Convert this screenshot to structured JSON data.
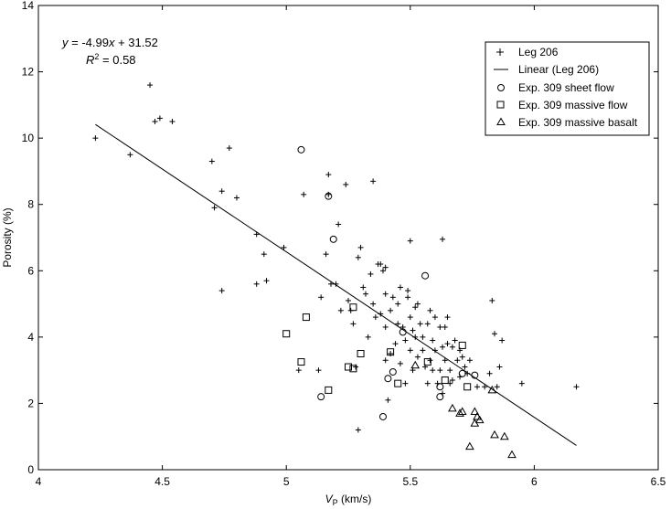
{
  "chart_data": {
    "type": "scatter",
    "title": "",
    "xlabel": "V",
    "xlabel_sub": "P",
    "xlabel_unit": " (km/s)",
    "ylabel": "Porosity (%)",
    "xlim": [
      4,
      6.5
    ],
    "ylim": [
      0,
      14
    ],
    "x_ticks": [
      4,
      4.5,
      5,
      5.5,
      6,
      6.5
    ],
    "x_tick_labels": [
      "4",
      "4.5",
      "5",
      "5.5",
      "6",
      "6.5"
    ],
    "y_ticks": [
      0,
      2,
      4,
      6,
      8,
      10,
      12,
      14
    ],
    "y_tick_labels": [
      "0",
      "2",
      "4",
      "6",
      "8",
      "10",
      "12",
      "14"
    ],
    "grid": false,
    "legend_position": "top-right",
    "annotation": {
      "equation_prefix": "y",
      "equation_body": " = -4.99",
      "equation_x": "x",
      "equation_tail": " + 31.52",
      "r2_prefix": "R",
      "r2_sup": "2",
      "r2_tail": " = 0.58"
    },
    "fit_line": {
      "name": "Linear (Leg 206)",
      "slope": -4.99,
      "intercept": 31.52,
      "x_range": [
        4.23,
        6.17
      ]
    },
    "series": [
      {
        "name": "Leg 206",
        "marker": "plus",
        "points": [
          [
            4.23,
            10.0
          ],
          [
            4.37,
            9.5
          ],
          [
            4.45,
            11.6
          ],
          [
            4.47,
            10.5
          ],
          [
            4.49,
            10.6
          ],
          [
            4.54,
            10.5
          ],
          [
            4.7,
            9.3
          ],
          [
            4.71,
            7.9
          ],
          [
            4.74,
            8.4
          ],
          [
            4.74,
            5.4
          ],
          [
            4.77,
            9.7
          ],
          [
            4.8,
            8.2
          ],
          [
            4.88,
            7.1
          ],
          [
            4.88,
            5.6
          ],
          [
            4.91,
            6.5
          ],
          [
            4.92,
            5.7
          ],
          [
            4.99,
            6.7
          ],
          [
            5.05,
            3.0
          ],
          [
            5.07,
            8.3
          ],
          [
            5.13,
            3.0
          ],
          [
            5.14,
            5.2
          ],
          [
            5.16,
            6.5
          ],
          [
            5.17,
            8.9
          ],
          [
            5.17,
            8.3
          ],
          [
            5.18,
            5.6
          ],
          [
            5.2,
            5.6
          ],
          [
            5.21,
            7.4
          ],
          [
            5.22,
            4.8
          ],
          [
            5.24,
            8.6
          ],
          [
            5.25,
            5.1
          ],
          [
            5.26,
            4.8
          ],
          [
            5.27,
            4.4
          ],
          [
            5.28,
            3.1
          ],
          [
            5.29,
            1.2
          ],
          [
            5.29,
            6.4
          ],
          [
            5.3,
            6.7
          ],
          [
            5.31,
            5.5
          ],
          [
            5.32,
            5.3
          ],
          [
            5.33,
            4.0
          ],
          [
            5.34,
            5.9
          ],
          [
            5.35,
            8.7
          ],
          [
            5.35,
            5.0
          ],
          [
            5.36,
            4.6
          ],
          [
            5.37,
            6.2
          ],
          [
            5.38,
            6.2
          ],
          [
            5.38,
            4.7
          ],
          [
            5.39,
            6.0
          ],
          [
            5.4,
            5.3
          ],
          [
            5.4,
            6.1
          ],
          [
            5.4,
            4.3
          ],
          [
            5.4,
            3.3
          ],
          [
            5.41,
            2.1
          ],
          [
            5.42,
            4.8
          ],
          [
            5.42,
            3.5
          ],
          [
            5.43,
            5.2
          ],
          [
            5.44,
            3.8
          ],
          [
            5.45,
            4.4
          ],
          [
            5.45,
            5.0
          ],
          [
            5.46,
            5.5
          ],
          [
            5.46,
            3.2
          ],
          [
            5.47,
            4.3
          ],
          [
            5.48,
            3.9
          ],
          [
            5.48,
            2.6
          ],
          [
            5.49,
            5.2
          ],
          [
            5.49,
            5.4
          ],
          [
            5.5,
            6.9
          ],
          [
            5.5,
            4.6
          ],
          [
            5.5,
            3.6
          ],
          [
            5.51,
            4.2
          ],
          [
            5.51,
            3.0
          ],
          [
            5.52,
            4.9
          ],
          [
            5.52,
            4.0
          ],
          [
            5.53,
            5.0
          ],
          [
            5.53,
            3.4
          ],
          [
            5.54,
            4.4
          ],
          [
            5.55,
            4.0
          ],
          [
            5.55,
            3.6
          ],
          [
            5.56,
            3.1
          ],
          [
            5.57,
            4.4
          ],
          [
            5.57,
            2.6
          ],
          [
            5.58,
            4.8
          ],
          [
            5.58,
            3.3
          ],
          [
            5.59,
            3.9
          ],
          [
            5.59,
            3.0
          ],
          [
            5.6,
            4.6
          ],
          [
            5.6,
            3.6
          ],
          [
            5.61,
            2.6
          ],
          [
            5.62,
            4.3
          ],
          [
            5.62,
            3.0
          ],
          [
            5.63,
            6.95
          ],
          [
            5.63,
            3.7
          ],
          [
            5.63,
            2.3
          ],
          [
            5.64,
            4.3
          ],
          [
            5.64,
            3.3
          ],
          [
            5.65,
            4.6
          ],
          [
            5.65,
            3.8
          ],
          [
            5.66,
            3.0
          ],
          [
            5.66,
            2.6
          ],
          [
            5.67,
            3.7
          ],
          [
            5.67,
            2.7
          ],
          [
            5.68,
            3.9
          ],
          [
            5.69,
            3.3
          ],
          [
            5.7,
            3.6
          ],
          [
            5.7,
            2.8
          ],
          [
            5.71,
            3.4
          ],
          [
            5.72,
            3.1
          ],
          [
            5.73,
            2.9
          ],
          [
            5.74,
            3.3
          ],
          [
            5.77,
            2.5
          ],
          [
            5.8,
            2.5
          ],
          [
            5.82,
            2.9
          ],
          [
            5.83,
            5.1
          ],
          [
            5.84,
            4.1
          ],
          [
            5.85,
            2.5
          ],
          [
            5.86,
            3.1
          ],
          [
            5.87,
            3.9
          ],
          [
            5.95,
            2.6
          ],
          [
            6.17,
            2.5
          ]
        ]
      },
      {
        "name": "Exp. 309 sheet flow",
        "marker": "circle",
        "points": [
          [
            5.06,
            9.65
          ],
          [
            5.17,
            8.25
          ],
          [
            5.19,
            6.95
          ],
          [
            5.14,
            2.2
          ],
          [
            5.39,
            1.6
          ],
          [
            5.41,
            2.75
          ],
          [
            5.43,
            2.95
          ],
          [
            5.47,
            4.15
          ],
          [
            5.56,
            5.85
          ],
          [
            5.62,
            2.5
          ],
          [
            5.62,
            2.2
          ],
          [
            5.71,
            2.9
          ],
          [
            5.76,
            2.85
          ]
        ]
      },
      {
        "name": "Exp. 309 massive flow",
        "marker": "square",
        "points": [
          [
            5.0,
            4.1
          ],
          [
            5.06,
            3.25
          ],
          [
            5.08,
            4.6
          ],
          [
            5.17,
            2.4
          ],
          [
            5.25,
            3.1
          ],
          [
            5.27,
            3.05
          ],
          [
            5.27,
            4.9
          ],
          [
            5.3,
            3.5
          ],
          [
            5.42,
            3.55
          ],
          [
            5.45,
            2.6
          ],
          [
            5.57,
            3.25
          ],
          [
            5.64,
            2.7
          ],
          [
            5.71,
            3.75
          ],
          [
            5.73,
            2.5
          ]
        ]
      },
      {
        "name": "Exp. 309 massive basalt",
        "marker": "triangle",
        "points": [
          [
            5.52,
            3.15
          ],
          [
            5.67,
            1.85
          ],
          [
            5.7,
            1.7
          ],
          [
            5.71,
            1.75
          ],
          [
            5.74,
            0.7
          ],
          [
            5.76,
            1.4
          ],
          [
            5.76,
            1.75
          ],
          [
            5.77,
            1.6
          ],
          [
            5.78,
            1.5
          ],
          [
            5.83,
            2.4
          ],
          [
            5.84,
            1.05
          ],
          [
            5.88,
            1.0
          ],
          [
            5.91,
            0.45
          ]
        ]
      }
    ]
  }
}
